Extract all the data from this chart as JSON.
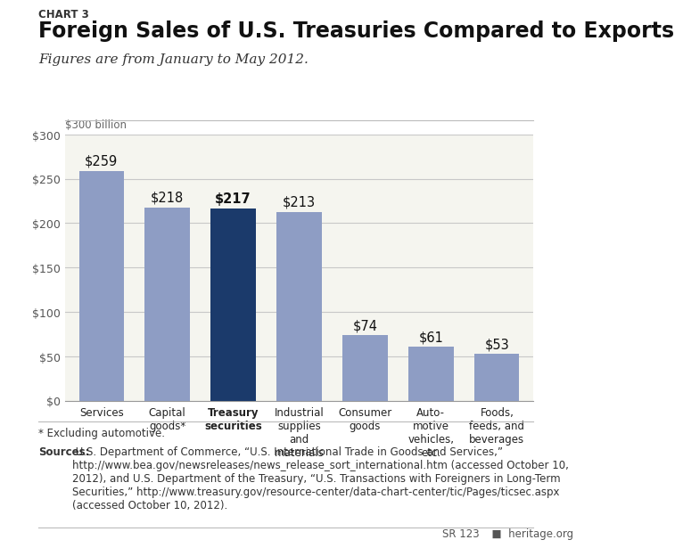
{
  "chart_label": "CHART 3",
  "title": "Foreign Sales of U.S. Treasuries Compared to Exports",
  "subtitle": "Figures are from January to May 2012.",
  "ylabel": "$300 billion",
  "categories": [
    "Services",
    "Capital\ngoods*",
    "Treasury\nsecurities",
    "Industrial\nsupplies\nand\nmaterials",
    "Consumer\ngoods",
    "Auto-\nmotive\nvehicles,\netc.",
    "Foods,\nfeeds, and\nbeverages"
  ],
  "values": [
    259,
    218,
    217,
    213,
    74,
    61,
    53
  ],
  "bar_colors": [
    "#8e9dc4",
    "#8e9dc4",
    "#1b3a6b",
    "#8e9dc4",
    "#8e9dc4",
    "#8e9dc4",
    "#8e9dc4"
  ],
  "value_labels": [
    "$259",
    "$218",
    "$217",
    "$213",
    "$74",
    "$61",
    "$53"
  ],
  "treasury_index": 2,
  "ylim": [
    0,
    300
  ],
  "yticks": [
    0,
    50,
    100,
    150,
    200,
    250,
    300
  ],
  "ytick_labels": [
    "$0",
    "$50",
    "$100",
    "$150",
    "$200",
    "$250",
    "$300"
  ],
  "footnote": "* Excluding automotive.",
  "sources_bold": "Sources:",
  "sources_text": " U.S. Department of Commerce, “U.S. International Trade in Goods and Services,”\nhttp://www.bea.gov/newsreleases/news_release_sort_international.htm (accessed October 10,\n2012), and U.S. Department of the Treasury, “U.S. Transactions with Foreigners in Long-Term\nSecurities,” http://www.treasury.gov/resource-center/data-chart-center/tic/Pages/ticsec.aspx\n(accessed October 10, 2012).",
  "footer_sr": "SR 123",
  "footer_heritage": "  ■  heritage.org",
  "bg_color": "#ffffff",
  "chart_bg_color": "#f5f5ef",
  "grid_color": "#c8c8c8",
  "title_fontsize": 17,
  "subtitle_fontsize": 11,
  "bar_label_fontsize": 10.5,
  "ytick_fontsize": 9,
  "xtick_fontsize": 8.5,
  "footnote_fontsize": 8.5,
  "sources_fontsize": 8.5,
  "footer_fontsize": 8.5
}
